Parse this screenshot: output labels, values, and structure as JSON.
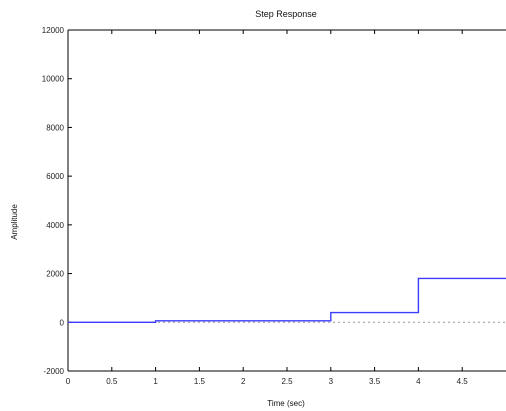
{
  "chart_data": {
    "type": "line",
    "title": "Step Response",
    "xlabel": "Time (sec)",
    "ylabel": "Amplitude",
    "xlim": [
      0,
      5
    ],
    "ylim": [
      -2000,
      12000
    ],
    "xticks": [
      0,
      0.5,
      1,
      1.5,
      2,
      2.5,
      3,
      3.5,
      4,
      4.5
    ],
    "xtick_labels": [
      "0",
      "0.5",
      "1",
      "1.5",
      "2",
      "2.5",
      "3",
      "3.5",
      "4",
      "4.5"
    ],
    "yticks": [
      -2000,
      0,
      2000,
      4000,
      6000,
      8000,
      10000,
      12000
    ],
    "ytick_labels": [
      "-2000",
      "0",
      "2000",
      "4000",
      "6000",
      "8000",
      "10000",
      "12000"
    ],
    "grid": false,
    "series": [
      {
        "x": [
          0,
          1,
          1,
          3,
          3,
          4,
          4,
          5
        ],
        "y": [
          0,
          0,
          60,
          60,
          400,
          400,
          1800,
          1800
        ],
        "color": "#3b3bff",
        "style": "steps"
      }
    ],
    "reference_line": {
      "y": 0,
      "style": "dotted",
      "color": "#999999"
    }
  }
}
